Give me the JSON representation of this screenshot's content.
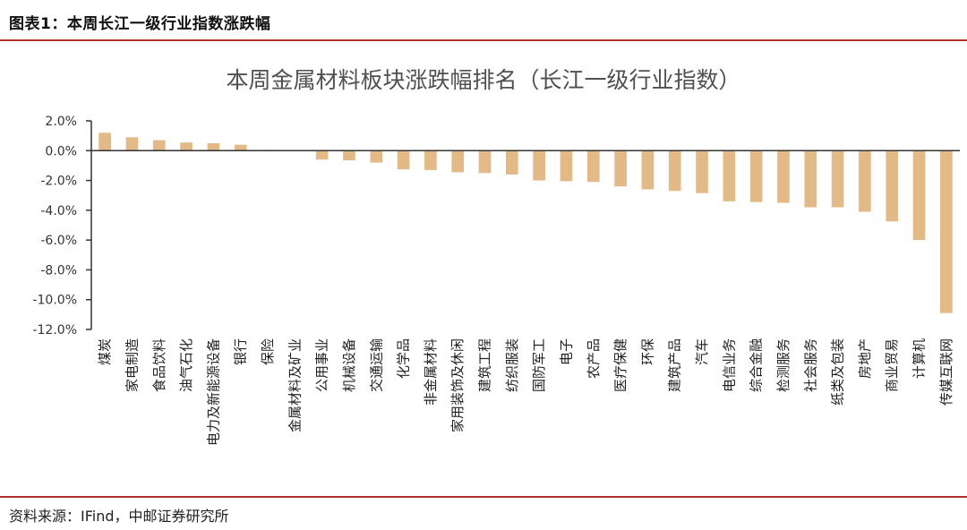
{
  "figure_header": "图表1：本周长江一级行业指数涨跌幅",
  "footer": "资料来源：IFind，中邮证券研究所",
  "colors": {
    "bar": "#e3b986",
    "rule": "#b03030",
    "axis": "#333333"
  },
  "chart_data": {
    "type": "bar",
    "title": "本周金属材料板块涨跌幅排名（长江一级行业指数）",
    "xlabel": "",
    "ylabel": "",
    "ylim": [
      -12.0,
      2.0
    ],
    "yticks": [
      "2.0%",
      "0.0%",
      "-2.0%",
      "-4.0%",
      "-6.0%",
      "-8.0%",
      "-10.0%",
      "-12.0%"
    ],
    "ytick_values": [
      2,
      0,
      -2,
      -4,
      -6,
      -8,
      -10,
      -12
    ],
    "grid": false,
    "legend": "none",
    "categories": [
      "煤炭",
      "家电制造",
      "食品饮料",
      "油气石化",
      "电力及新能源设备",
      "银行",
      "保险",
      "金属材料及矿业",
      "公用事业",
      "机械设备",
      "交通运输",
      "化学品",
      "非金属材料",
      "家用装饰及休闲",
      "建筑工程",
      "纺织服装",
      "国防军工",
      "电子",
      "农产品",
      "医疗保健",
      "环保",
      "建筑产品",
      "汽车",
      "电信业务",
      "综合金融",
      "检测服务",
      "社会服务",
      "纸类及包装",
      "房地产",
      "商业贸易",
      "计算机",
      "传媒互联网"
    ],
    "values": [
      1.2,
      0.9,
      0.7,
      0.55,
      0.5,
      0.4,
      0.05,
      0.0,
      -0.6,
      -0.65,
      -0.8,
      -1.25,
      -1.3,
      -1.45,
      -1.5,
      -1.6,
      -2.0,
      -2.05,
      -2.1,
      -2.4,
      -2.6,
      -2.7,
      -2.85,
      -3.4,
      -3.45,
      -3.5,
      -3.8,
      -3.8,
      -4.1,
      -4.75,
      -6.0,
      -10.9
    ]
  }
}
